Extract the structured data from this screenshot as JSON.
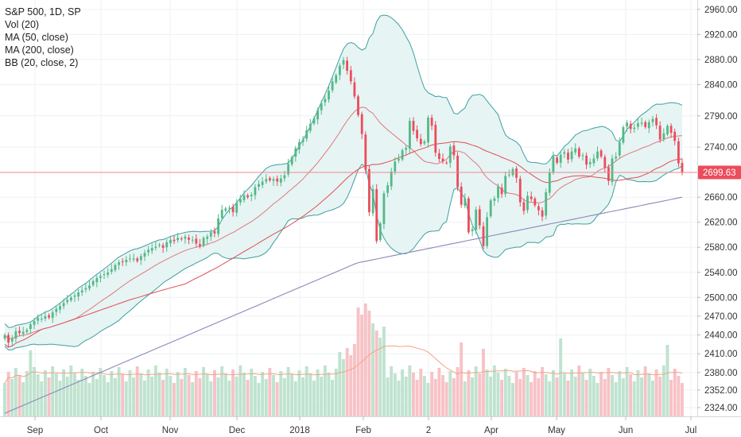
{
  "legend": {
    "symbol": "S&P 500, 1D, SP",
    "vol": "Vol (20)",
    "ma50": "MA (50, close)",
    "ma200": "MA (200, close)",
    "bb": "BB (20, close, 2)"
  },
  "price_tag": "2699.63",
  "colors": {
    "up": "#53b987",
    "down": "#eb4d5c",
    "vol_up": "#bfe3cf",
    "vol_down": "#f7c2c6",
    "bb_fill": "#e3f3f3",
    "bb_line": "#3f9fa0",
    "ma_short": "#e04e55",
    "ma_long": "#8f86b7",
    "vol_ma": "#f1a486",
    "grid": "#eef0f3",
    "price_line": "#f08a8f"
  },
  "chart_data": {
    "type": "candlestick",
    "title": "S&P 500, 1D, SP",
    "ylim": [
      2310,
      2975
    ],
    "y_ticks": [
      "2960.00",
      "2920.00",
      "2880.00",
      "2840.00",
      "2790.00",
      "2740.00",
      "2699.63",
      "2660.00",
      "2620.00",
      "2580.00",
      "2540.00",
      "2500.00",
      "2470.00",
      "2440.00",
      "2410.00",
      "2380.00",
      "2352.00",
      "2324.00"
    ],
    "x_ticks": [
      "Sep",
      "Oct",
      "Nov",
      "Dec",
      "2018",
      "Feb",
      "2",
      "Apr",
      "May",
      "Jun",
      "Jul"
    ],
    "last_price": 2699.63,
    "close": [
      2440,
      2428,
      2435,
      2446,
      2443,
      2445,
      2448,
      2457,
      2462,
      2467,
      2466,
      2470,
      2468,
      2476,
      2482,
      2486,
      2491,
      2496,
      2500,
      2503,
      2508,
      2511,
      2515,
      2519,
      2526,
      2531,
      2534,
      2537,
      2540,
      2545,
      2552,
      2556,
      2557,
      2560,
      2562,
      2562,
      2558,
      2566,
      2571,
      2576,
      2579,
      2581,
      2584,
      2579,
      2588,
      2592,
      2590,
      2595,
      2593,
      2597,
      2592,
      2592,
      2586,
      2582,
      2595,
      2597,
      2604,
      2602,
      2626,
      2640,
      2642,
      2643,
      2636,
      2651,
      2657,
      2663,
      2660,
      2664,
      2676,
      2681,
      2685,
      2689,
      2687,
      2689,
      2685,
      2690,
      2695,
      2713,
      2724,
      2738,
      2748,
      2752,
      2767,
      2777,
      2786,
      2799,
      2810,
      2817,
      2830,
      2845,
      2855,
      2870,
      2879,
      2862,
      2845,
      2821,
      2791,
      2761,
      2704,
      2636,
      2673,
      2590,
      2618,
      2666,
      2679,
      2701,
      2717,
      2721,
      2735,
      2739,
      2782,
      2766,
      2754,
      2745,
      2749,
      2787,
      2774,
      2731,
      2721,
      2717,
      2715,
      2741,
      2727,
      2676,
      2648,
      2658,
      2604,
      2609,
      2640,
      2615,
      2582,
      2628,
      2655,
      2658,
      2677,
      2665,
      2694,
      2696,
      2705,
      2691,
      2652,
      2638,
      2662,
      2657,
      2647,
      2639,
      2629,
      2668,
      2699,
      2725,
      2715,
      2728,
      2732,
      2720,
      2733,
      2738,
      2725,
      2727,
      2712,
      2716,
      2722,
      2733,
      2725,
      2707,
      2686,
      2722,
      2725,
      2748,
      2772,
      2779,
      2769,
      2771,
      2778,
      2779,
      2772,
      2780,
      2785,
      2775,
      2752,
      2762,
      2774,
      2763,
      2750,
      2714,
      2700
    ],
    "series": [
      {
        "name": "Vol (20)",
        "type": "histogram"
      },
      {
        "name": "MA (50, close)",
        "type": "line"
      },
      {
        "name": "MA (200, close)",
        "type": "line"
      },
      {
        "name": "BB (20, close, 2)",
        "type": "band"
      }
    ],
    "grid": true,
    "legend_position": "top-left"
  }
}
